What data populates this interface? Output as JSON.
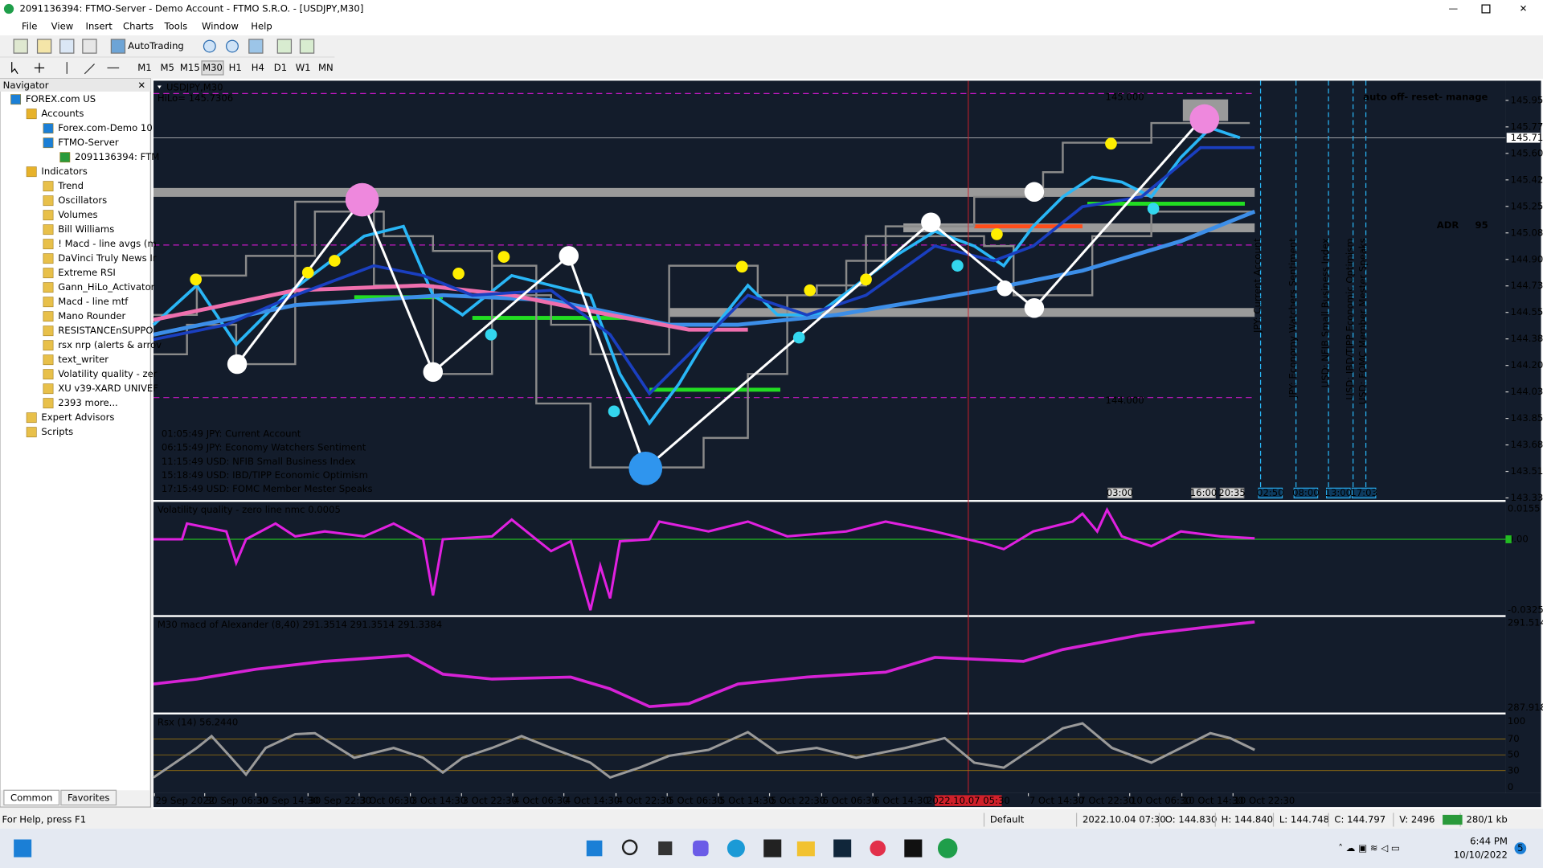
{
  "window": {
    "title": "2091136394: FTMO-Server - Demo Account - FTMO S.R.O. - [USDJPY,M30]"
  },
  "menu": [
    "File",
    "View",
    "Insert",
    "Charts",
    "Tools",
    "Window",
    "Help"
  ],
  "toolbar": {
    "autotrading": "AutoTrading",
    "timeframes": [
      "M1",
      "M5",
      "M15",
      "M30",
      "H1",
      "H4",
      "D1",
      "W1",
      "MN"
    ]
  },
  "navigator": {
    "title": "Navigator",
    "items": [
      "FOREX.com US",
      "Accounts",
      "Forex.com-Demo 10",
      "FTMO-Server",
      "2091136394: FTM",
      "Indicators",
      "Trend",
      "Oscillators",
      "Volumes",
      "Bill Williams",
      "! Macd - line avgs (m",
      "DaVinci Truly News Ir",
      "Extreme RSI",
      "Gann_HiLo_Activator",
      "Macd - line mtf",
      "Mano Rounder",
      "RESISTANCEnSUPPO",
      "rsx nrp (alerts & arrov",
      "text_writer",
      "Volatility quality - zer",
      "XU v39-XARD UNIVEF",
      "2393 more...",
      "Expert Advisors",
      "Scripts"
    ],
    "tabs": [
      "Common",
      "Favorites"
    ]
  },
  "chart": {
    "symbol": "USDJPY,M30",
    "hilo": "HiLo= 145.7306",
    "banner": "auto off- reset- manage",
    "adr_label": "ADR",
    "adr_value": "95",
    "price_axis": [
      "145.950",
      "145.775",
      "145.600",
      "145.425",
      "145.255",
      "145.080",
      "144.905",
      "144.730",
      "144.555",
      "144.380",
      "144.200",
      "144.030",
      "143.855",
      "143.680",
      "143.510",
      "143.335"
    ],
    "current_price": "145.710",
    "levels": [
      "145.000",
      "144.000"
    ],
    "news": [
      "01:05:49   JPY: Current Account",
      "06:15:49   JPY: Economy Watchers Sentiment",
      "11:15:49   USD: NFIB Small Business Index",
      "15:18:49   USD: IBD/TIPP Economic Optimism",
      "17:15:49   USD: FOMC Member Mester Speaks"
    ],
    "events": [
      "JPY: Current Account",
      "JPY: Economy Watchers Sentiment",
      "USD: NFIB Small Business Index",
      "USD: IBD/TIPP Economic Optimism",
      "USD: FOMC Member Mester Speaks"
    ],
    "event_times": [
      "03:00",
      "16:00",
      "20:35",
      "02:50",
      "08:00",
      "13:00",
      "17:03"
    ],
    "time_axis": [
      "29 Sep 2022",
      "30 Sep 06:30",
      "30 Sep 14:30",
      "30 Sep 22:30",
      "3 Oct 06:30",
      "3 Oct 14:30",
      "3 Oct 22:30",
      "4 Oct 06:30",
      "4 Oct 14:30",
      "4 Oct 22:30",
      "5 Oct 06:30",
      "5 Oct 14:30",
      "5 Oct 22:30",
      "6 Oct 06:30",
      "6 Oct 14:30",
      "7 Oct 14:30",
      "7 Oct 22:30",
      "10 Oct 06:30",
      "10 Oct 14:30",
      "10 Oct 22:30"
    ],
    "cursor_time": "2022.10.07 05:30"
  },
  "panels": [
    {
      "title": "Volatility quality - zero line nmc 0.0005",
      "axis": [
        "0.0155",
        "0.00",
        "-0.0325"
      ]
    },
    {
      "title": "M30  macd of Alexander (8,40) 291.3514 291.3514 291.3384",
      "axis": [
        "291.5149",
        "287.9188"
      ]
    },
    {
      "title": "Rsx (14) 56.2440",
      "axis": [
        "100",
        "70",
        "50",
        "30",
        "0"
      ]
    }
  ],
  "status": [
    "For Help, press F1",
    "Default",
    "2022.10.04 07:30",
    "O: 144.830",
    "H: 144.840",
    "L: 144.748",
    "C: 144.797",
    "V: 2496",
    "280/1 kb"
  ],
  "taskbar": {
    "time": "6:44 PM",
    "date": "10/10/2022",
    "badge": "5"
  }
}
